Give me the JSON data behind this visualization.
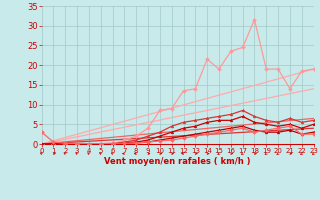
{
  "xlabel": "Vent moyen/en rafales ( km/h )",
  "xlim": [
    0,
    23
  ],
  "ylim": [
    0,
    35
  ],
  "yticks": [
    0,
    5,
    10,
    15,
    20,
    25,
    30,
    35
  ],
  "xticks": [
    0,
    1,
    2,
    3,
    4,
    5,
    6,
    7,
    8,
    9,
    10,
    11,
    12,
    13,
    14,
    15,
    16,
    17,
    18,
    19,
    20,
    21,
    22,
    23
  ],
  "bg_color": "#c8eaea",
  "grid_color": "#a0c8c8",
  "red_dark": "#cc0000",
  "red_mid": "#ee5555",
  "red_light": "#ff9999",
  "red_very_light": "#ffbbbb",
  "trend_lines": [
    {
      "x": [
        0,
        23
      ],
      "y": [
        0,
        19.0
      ],
      "color": "#ffaaaa",
      "lw": 0.9
    },
    {
      "x": [
        0,
        23
      ],
      "y": [
        0,
        14.0
      ],
      "color": "#ffaaaa",
      "lw": 0.9
    },
    {
      "x": [
        0,
        23
      ],
      "y": [
        0,
        6.5
      ],
      "color": "#ee6666",
      "lw": 0.9
    },
    {
      "x": [
        0,
        23
      ],
      "y": [
        0,
        4.0
      ],
      "color": "#dd3333",
      "lw": 0.9
    }
  ],
  "data_lines": [
    {
      "x": [
        0,
        1,
        2,
        3,
        4,
        5,
        6,
        7,
        8,
        9,
        10,
        11,
        12,
        13,
        14,
        15,
        16,
        17,
        18,
        19,
        20,
        21,
        22,
        23
      ],
      "y": [
        0,
        0,
        0,
        0,
        0,
        0,
        0,
        1,
        2,
        4,
        8.5,
        9,
        13.5,
        14,
        21.5,
        19,
        23.5,
        24.5,
        31.5,
        19,
        19,
        14,
        18.5,
        19
      ],
      "color": "#ff9999",
      "lw": 0.9,
      "marker": "D",
      "ms": 2.0
    },
    {
      "x": [
        0,
        1,
        2,
        3,
        4,
        5,
        6,
        7,
        8,
        9,
        10,
        11,
        12,
        13,
        14,
        15,
        16,
        17,
        18,
        19,
        20,
        21,
        22,
        23
      ],
      "y": [
        0,
        0,
        0,
        0,
        0,
        0,
        0,
        0.5,
        1,
        2,
        3,
        4.5,
        5.5,
        6,
        6.5,
        7,
        7.5,
        8.5,
        7,
        6,
        5.5,
        6.5,
        5.5,
        6
      ],
      "color": "#dd3333",
      "lw": 0.9,
      "marker": "^",
      "ms": 2.0
    },
    {
      "x": [
        0,
        1,
        2,
        3,
        4,
        5,
        6,
        7,
        8,
        9,
        10,
        11,
        12,
        13,
        14,
        15,
        16,
        17,
        18,
        19,
        20,
        21,
        22,
        23
      ],
      "y": [
        0,
        0,
        0,
        0,
        0,
        0,
        0,
        0.3,
        0.5,
        1,
        2,
        3,
        4,
        4.5,
        5.5,
        6,
        6,
        7,
        5.5,
        5,
        4.5,
        5,
        4,
        5
      ],
      "color": "#cc0000",
      "lw": 0.9,
      "marker": "^",
      "ms": 2.0
    },
    {
      "x": [
        0,
        1,
        2,
        3,
        4,
        5,
        6,
        7,
        8,
        9,
        10,
        11,
        12,
        13,
        14,
        15,
        16,
        17,
        18,
        19,
        20,
        21,
        22,
        23
      ],
      "y": [
        0,
        0,
        0,
        0,
        0,
        0,
        0,
        0.2,
        0.3,
        0.5,
        1,
        1.5,
        2,
        2.5,
        3,
        3.5,
        4,
        4.5,
        3.5,
        3,
        3,
        3.5,
        2.5,
        3
      ],
      "color": "#bb0000",
      "lw": 0.9,
      "marker": "^",
      "ms": 2.0
    },
    {
      "x": [
        0,
        1,
        2,
        3,
        4,
        5,
        6,
        7,
        8,
        9,
        10,
        11,
        12,
        13,
        14,
        15,
        16,
        17,
        18,
        19,
        20,
        21,
        22,
        23
      ],
      "y": [
        3,
        0.5,
        0.2,
        0.1,
        0.1,
        0.1,
        0.2,
        0.2,
        0.3,
        0.5,
        0.8,
        1,
        1.5,
        2,
        2.5,
        3,
        3.5,
        4,
        3,
        3.5,
        4,
        4.5,
        2.5,
        2.5
      ],
      "color": "#ff6666",
      "lw": 0.9,
      "marker": "D",
      "ms": 2.0
    }
  ],
  "wind_dirs_deg": [
    225,
    90,
    225,
    225,
    225,
    225,
    225,
    270,
    270,
    90,
    90,
    90,
    270,
    90,
    90,
    315,
    90,
    315,
    90,
    315,
    315,
    90,
    315,
    315
  ]
}
